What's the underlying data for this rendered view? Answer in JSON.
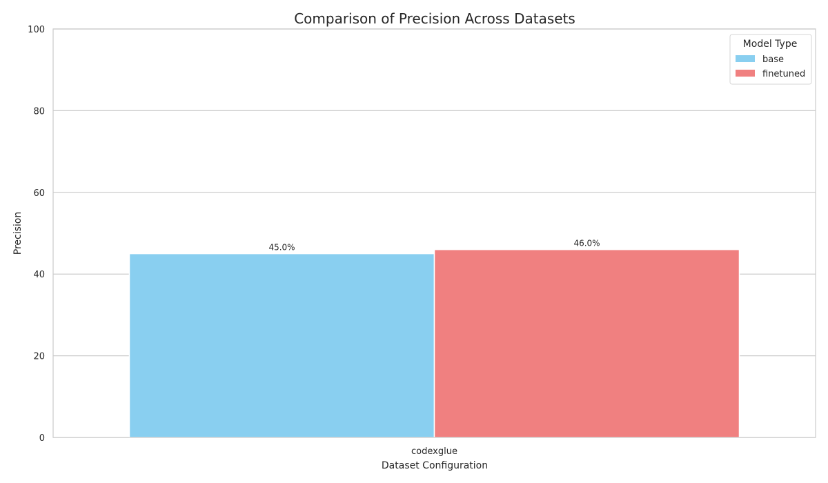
{
  "chart_data": {
    "type": "bar",
    "title": "Comparison of Precision Across Datasets",
    "xlabel": "Dataset Configuration",
    "ylabel": "Precision",
    "categories": [
      "codexglue"
    ],
    "series": [
      {
        "name": "base",
        "values": [
          45.0
        ],
        "labels": [
          "45.0%"
        ],
        "color": "#89CFF0"
      },
      {
        "name": "finetuned",
        "values": [
          46.0
        ],
        "labels": [
          "46.0%"
        ],
        "color": "#F08080"
      }
    ],
    "ylim": [
      0,
      100
    ],
    "yticks": [
      "0",
      "20",
      "40",
      "60",
      "80",
      "100"
    ],
    "grid": "horizontal",
    "legend": {
      "title": "Model Type",
      "placement": "top-right"
    }
  },
  "colors": {
    "grid": "#cccccc",
    "axes": "#cccccc",
    "text": "#262626"
  }
}
